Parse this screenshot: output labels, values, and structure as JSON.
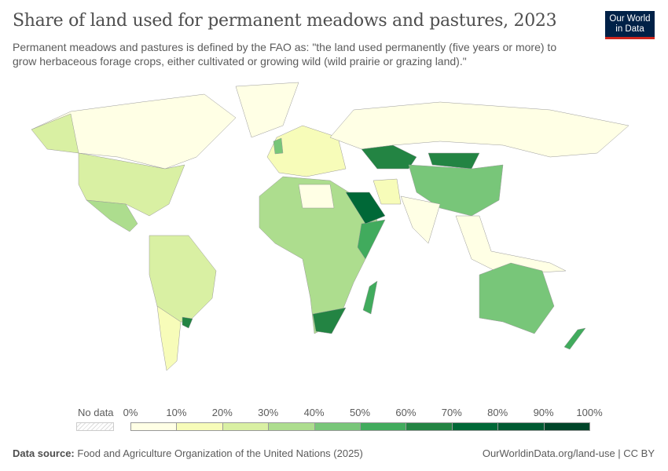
{
  "title": "Share of land used for permanent meadows and pastures, 2023",
  "subtitle": "Permanent meadows and pastures is defined by the FAO as: \"the land used permanently (five years or more) to grow herbaceous forage crops, either cultivated or growing wild (wild prairie or grazing land).\"",
  "logo": {
    "line1": "Our World",
    "line2": "in Data"
  },
  "legend": {
    "no_data": "No data",
    "ticks": [
      "0%",
      "10%",
      "20%",
      "30%",
      "40%",
      "50%",
      "60%",
      "70%",
      "80%",
      "90%",
      "100%"
    ],
    "colors": [
      "#ffffe5",
      "#f7fcb9",
      "#d9f0a3",
      "#addd8e",
      "#78c679",
      "#41ab5d",
      "#238443",
      "#006837",
      "#005a32",
      "#004529"
    ]
  },
  "footer": {
    "source_label": "Data source:",
    "source": "Food and Agriculture Organization of the United Nations (2025)",
    "link": "OurWorldinData.org/land-use | CC BY"
  },
  "map_regions": [
    {
      "name": "Canada",
      "bin": 0
    },
    {
      "name": "Alaska",
      "bin": 2
    },
    {
      "name": "United States",
      "bin": 2
    },
    {
      "name": "Mexico",
      "bin": 3
    },
    {
      "name": "Greenland",
      "bin": 0
    },
    {
      "name": "South America",
      "bin": 2
    },
    {
      "name": "Argentina",
      "bin": 1
    },
    {
      "name": "Uruguay",
      "bin": 6
    },
    {
      "name": "Europe",
      "bin": 1
    },
    {
      "name": "United Kingdom",
      "bin": 4
    },
    {
      "name": "Africa",
      "bin": 3
    },
    {
      "name": "Sahara",
      "bin": 0
    },
    {
      "name": "Somalia",
      "bin": 5
    },
    {
      "name": "South Africa",
      "bin": 6
    },
    {
      "name": "Madagascar",
      "bin": 5
    },
    {
      "name": "Saudi Arabia",
      "bin": 7
    },
    {
      "name": "Russia",
      "bin": 0
    },
    {
      "name": "Kazakhstan",
      "bin": 6
    },
    {
      "name": "Mongolia",
      "bin": 6
    },
    {
      "name": "China",
      "bin": 4
    },
    {
      "name": "India",
      "bin": 0
    },
    {
      "name": "Southeast Asia",
      "bin": 0
    },
    {
      "name": "Australia",
      "bin": 4
    },
    {
      "name": "New Zealand",
      "bin": 5
    },
    {
      "name": "Iran",
      "bin": 1
    }
  ]
}
